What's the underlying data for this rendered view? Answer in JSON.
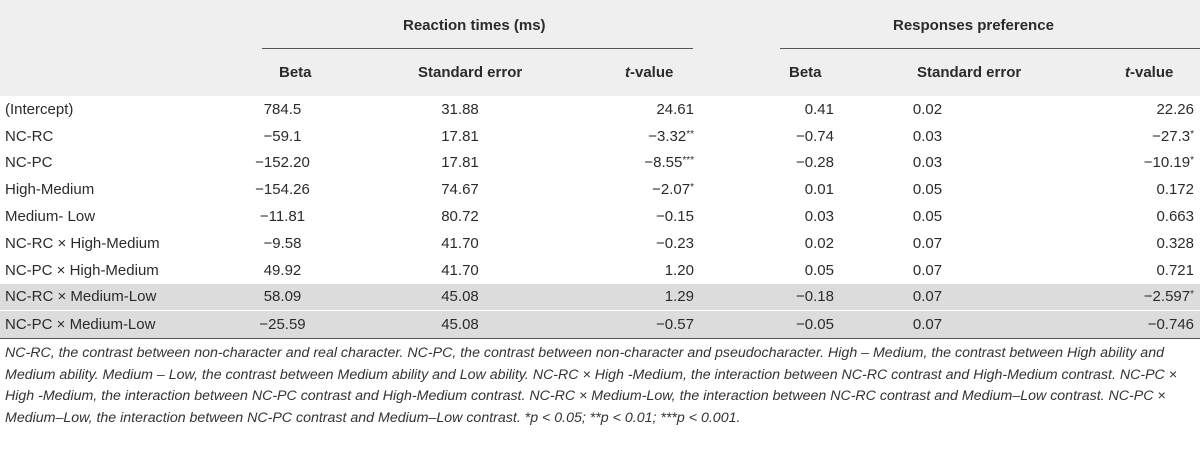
{
  "header": {
    "group1": "Reaction times (ms)",
    "group2": "Responses preference",
    "col_beta": "Beta",
    "col_se": "Standard error",
    "col_t_italic": "t",
    "col_t_suffix": "-value"
  },
  "rows": [
    {
      "label": "(Intercept)",
      "rt_beta": "784.5",
      "rt_se": "31.88",
      "rt_t": "24.61",
      "rt_sig": "",
      "rp_beta": "0.41",
      "rp_se": "0.02",
      "rp_t": "22.26",
      "rp_sig": ""
    },
    {
      "label": "NC-RC",
      "rt_beta": "−59.1",
      "rt_se": "17.81",
      "rt_t": "−3.32",
      "rt_sig": "**",
      "rp_beta": "−0.74",
      "rp_se": "0.03",
      "rp_t": "−27.3",
      "rp_sig": "*"
    },
    {
      "label": "NC-PC",
      "rt_beta": "−152.20",
      "rt_se": "17.81",
      "rt_t": "−8.55",
      "rt_sig": "***",
      "rp_beta": "−0.28",
      "rp_se": "0.03",
      "rp_t": "−10.19",
      "rp_sig": "*"
    },
    {
      "label": "High-Medium",
      "rt_beta": "−154.26",
      "rt_se": "74.67",
      "rt_t": "−2.07",
      "rt_sig": "*",
      "rp_beta": "0.01",
      "rp_se": "0.05",
      "rp_t": "0.172",
      "rp_sig": ""
    },
    {
      "label": "Medium- Low",
      "rt_beta": "−11.81",
      "rt_se": "80.72",
      "rt_t": "−0.15",
      "rt_sig": "",
      "rp_beta": "0.03",
      "rp_se": "0.05",
      "rp_t": "0.663",
      "rp_sig": ""
    },
    {
      "label": "NC-RC × High-Medium",
      "rt_beta": "−9.58",
      "rt_se": "41.70",
      "rt_t": "−0.23",
      "rt_sig": "",
      "rp_beta": "0.02",
      "rp_se": "0.07",
      "rp_t": "0.328",
      "rp_sig": ""
    },
    {
      "label": "NC-PC × High-Medium",
      "rt_beta": "49.92",
      "rt_se": "41.70",
      "rt_t": "1.20",
      "rt_sig": "",
      "rp_beta": "0.05",
      "rp_se": "0.07",
      "rp_t": "0.721",
      "rp_sig": ""
    },
    {
      "label": "NC-RC × Medium-Low",
      "rt_beta": "58.09",
      "rt_se": "45.08",
      "rt_t": "1.29",
      "rt_sig": "",
      "rp_beta": "−0.18",
      "rp_se": "0.07",
      "rp_t": "−2.597",
      "rp_sig": "*"
    },
    {
      "label": "NC-PC × Medium-Low",
      "rt_beta": "−25.59",
      "rt_se": "45.08",
      "rt_t": "−0.57",
      "rt_sig": "",
      "rp_beta": "−0.05",
      "rp_se": "0.07",
      "rp_t": "−0.746",
      "rp_sig": ""
    }
  ],
  "shaded_rows": [
    7,
    8
  ],
  "footnote": "NC-RC, the contrast between non-character and real character. NC-PC, the contrast between non-character and pseudocharacter. High – Medium, the contrast between High ability and Medium ability. Medium – Low, the contrast between Medium ability and Low ability. NC-RC × High -Medium, the interaction between NC-RC contrast and High-Medium contrast. NC-PC × High -Medium, the interaction between NC-PC contrast and High-Medium contrast. NC-RC × Medium-Low, the interaction between NC-RC contrast and Medium–Low contrast. NC-PC × Medium–Low, the interaction between NC-PC contrast and Medium–Low contrast. *p < 0.05; **p < 0.01; ***p < 0.001.",
  "colors": {
    "header_band": "#efefef",
    "shaded_row": "#dcdcdc",
    "rule": "#555555"
  }
}
